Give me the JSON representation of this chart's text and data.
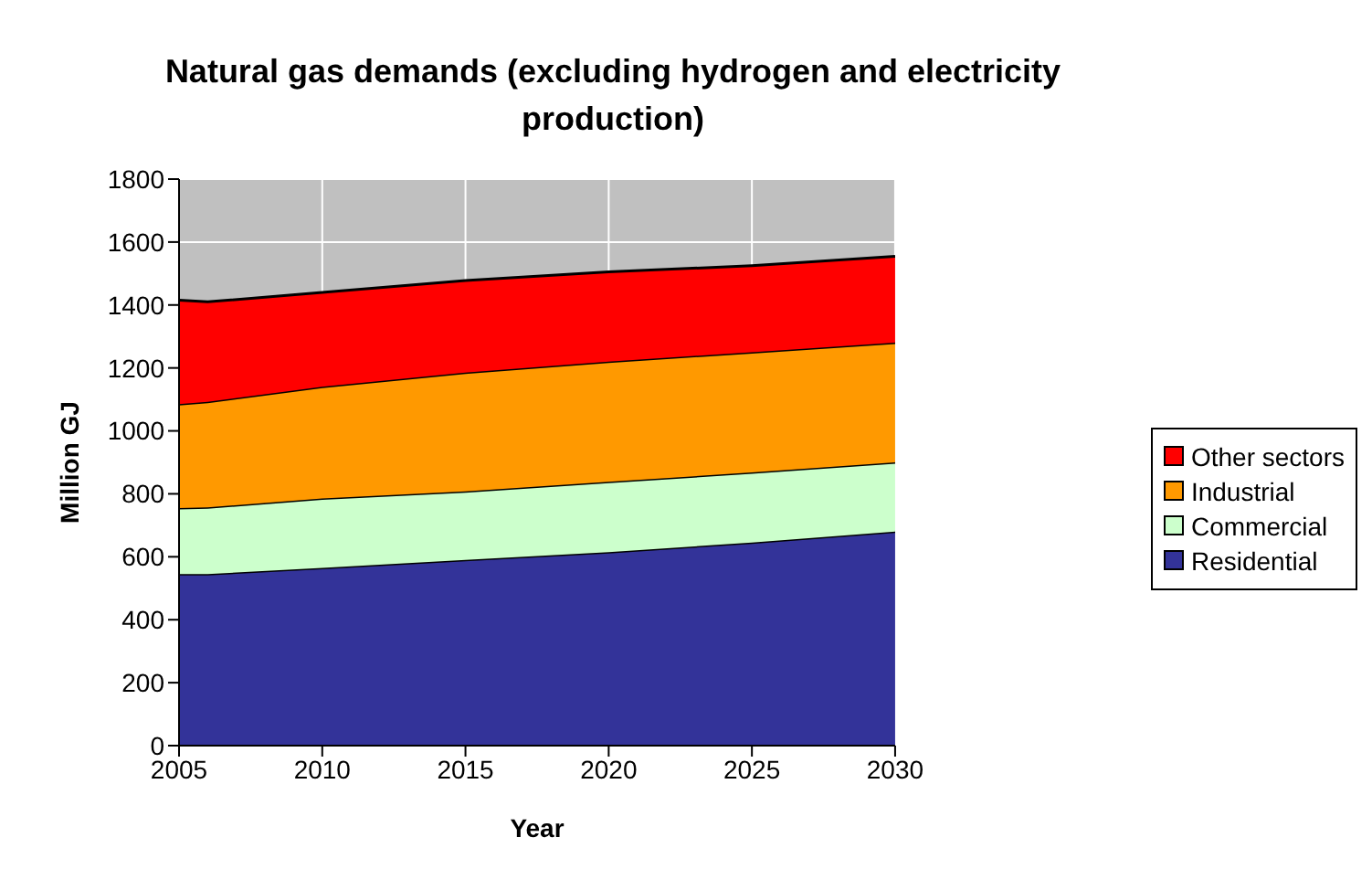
{
  "chart_data": {
    "type": "area",
    "stacked": true,
    "title": "Natural gas demands (excluding hydrogen and electricity production)",
    "xlabel": "Year",
    "ylabel": "Million GJ",
    "x": [
      2005,
      2006,
      2010,
      2015,
      2020,
      2025,
      2030
    ],
    "series": [
      {
        "name": "Residential",
        "color": "#333399",
        "values": [
          545,
          545,
          565,
          590,
          615,
          645,
          680
        ]
      },
      {
        "name": "Commercial",
        "color": "#ccffcc",
        "values": [
          210,
          212,
          220,
          218,
          223,
          223,
          220
        ]
      },
      {
        "name": "Industrial",
        "color": "#ff9900",
        "values": [
          330,
          335,
          355,
          377,
          382,
          382,
          380
        ]
      },
      {
        "name": "Other sectors",
        "color": "#ff0000",
        "values": [
          330,
          318,
          300,
          293,
          285,
          275,
          275
        ]
      }
    ],
    "xlim": [
      2005,
      2030
    ],
    "xticks": [
      2005,
      2010,
      2015,
      2020,
      2025,
      2030
    ],
    "ylim": [
      0,
      1800
    ],
    "yticks": [
      0,
      200,
      400,
      600,
      800,
      1000,
      1200,
      1400,
      1600,
      1800
    ],
    "grid": true,
    "legend": "right"
  }
}
